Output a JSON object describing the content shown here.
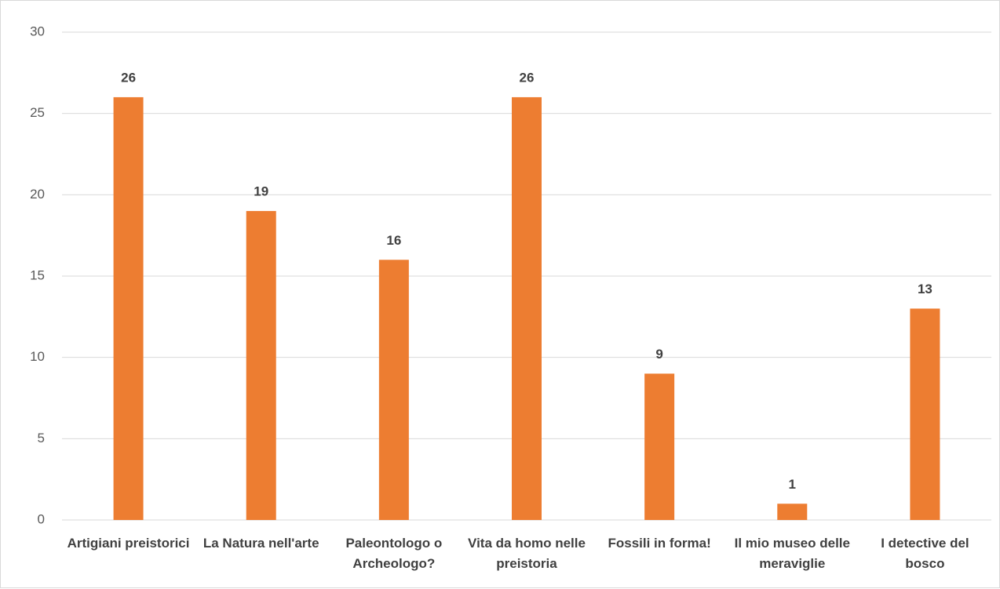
{
  "chart_data": {
    "type": "bar",
    "categories": [
      "Artigiani preistorici",
      "La Natura nell'arte",
      "Paleontologo o Archeologo?",
      "Vita da homo nelle preistoria",
      "Fossili in forma!",
      "Il mio museo delle meraviglie",
      "I detective del bosco"
    ],
    "values": [
      26,
      19,
      16,
      26,
      9,
      1,
      13
    ],
    "color": "#ed7d31",
    "ylim": [
      0,
      30
    ],
    "yticks": [
      0,
      5,
      10,
      15,
      20,
      25,
      30
    ],
    "grid": true
  }
}
